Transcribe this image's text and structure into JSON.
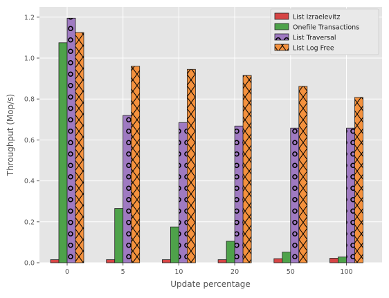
{
  "chart_data": {
    "type": "bar",
    "categories": [
      "0",
      "5",
      "10",
      "20",
      "50",
      "100"
    ],
    "xlabel": "Update percentage",
    "ylabel": "Throughput (Mop/s)",
    "ylim": [
      0,
      1.25
    ],
    "yticks": [
      0.0,
      0.2,
      0.4,
      0.6,
      0.8,
      1.0,
      1.2
    ],
    "ytick_labels": [
      "0.0",
      "0.2",
      "0.4",
      "0.6",
      "0.8",
      "1.0",
      "1.2"
    ],
    "grid": true,
    "legend_position": "top-right",
    "series": [
      {
        "name": "List Izraelevitz",
        "color": "#d64545",
        "hatch": "none",
        "values": [
          0.015,
          0.015,
          0.015,
          0.015,
          0.02,
          0.022
        ]
      },
      {
        "name": "Onefile Transactions",
        "color": "#4ea24a",
        "hatch": "none",
        "values": [
          1.075,
          0.265,
          0.175,
          0.105,
          0.052,
          0.028
        ]
      },
      {
        "name": "List Traversal",
        "color": "#9f7ac1",
        "hatch": "circles",
        "values": [
          1.195,
          0.72,
          0.685,
          0.668,
          0.658,
          0.658
        ]
      },
      {
        "name": "List Log Free",
        "color": "#f4913d",
        "hatch": "cross",
        "values": [
          1.125,
          0.96,
          0.945,
          0.915,
          0.862,
          0.808
        ]
      }
    ]
  }
}
